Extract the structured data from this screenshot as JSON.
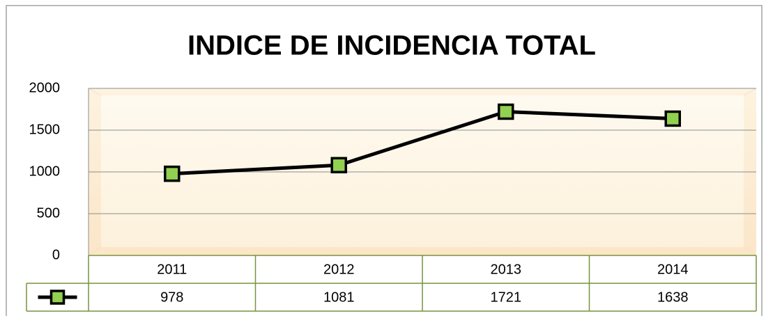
{
  "chart_data": {
    "type": "line",
    "title": "INDICE DE INCIDENCIA TOTAL",
    "categories": [
      "2011",
      "2012",
      "2013",
      "2014"
    ],
    "values": [
      978,
      1081,
      1721,
      1638
    ],
    "color": "#000000",
    "marker_color": "#92d050",
    "ylim": [
      0,
      2000
    ],
    "yticks": [
      0,
      500,
      1000,
      1500,
      2000
    ],
    "grid": true,
    "data_table": true
  }
}
